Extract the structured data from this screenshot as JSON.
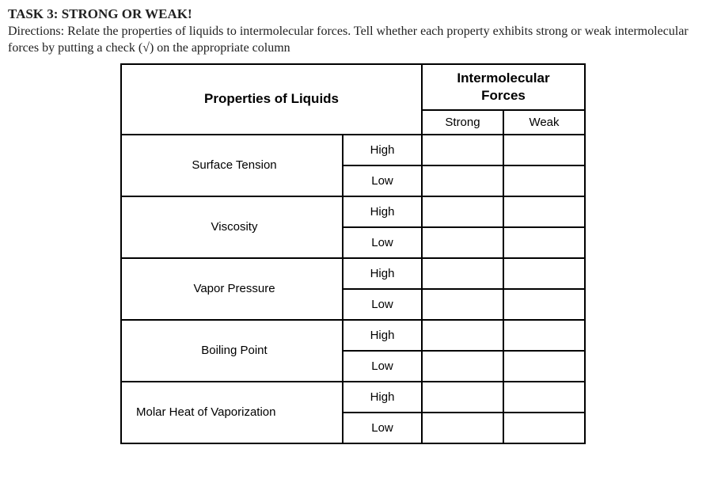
{
  "task": {
    "title": "TASK 3: STRONG OR WEAK!",
    "directions_prefix": "Directions: Relate the properties of liquids to intermolecular forces. Tell whether each property exhibits strong or weak intermolecular forces by putting a check (",
    "check_symbol": "√",
    "directions_suffix": ") on the appropriate column"
  },
  "table": {
    "header_properties": "Properties of Liquids",
    "header_imf_line1": "Intermolecular",
    "header_imf_line2": "Forces",
    "header_strong": "Strong",
    "header_weak": "Weak",
    "rows": [
      {
        "property": "Surface Tension",
        "levels": [
          "High",
          "Low"
        ],
        "align": "center"
      },
      {
        "property": "Viscosity",
        "levels": [
          "High",
          "Low"
        ],
        "align": "center"
      },
      {
        "property": "Vapor Pressure",
        "levels": [
          "High",
          "Low"
        ],
        "align": "center"
      },
      {
        "property": "Boiling Point",
        "levels": [
          "High",
          "Low"
        ],
        "align": "center"
      },
      {
        "property": "Molar Heat of Vaporization",
        "levels": [
          "High",
          "Low"
        ],
        "align": "left"
      }
    ]
  },
  "styles": {
    "border_color": "#000000",
    "text_color": "#212121",
    "background_color": "#ffffff"
  }
}
